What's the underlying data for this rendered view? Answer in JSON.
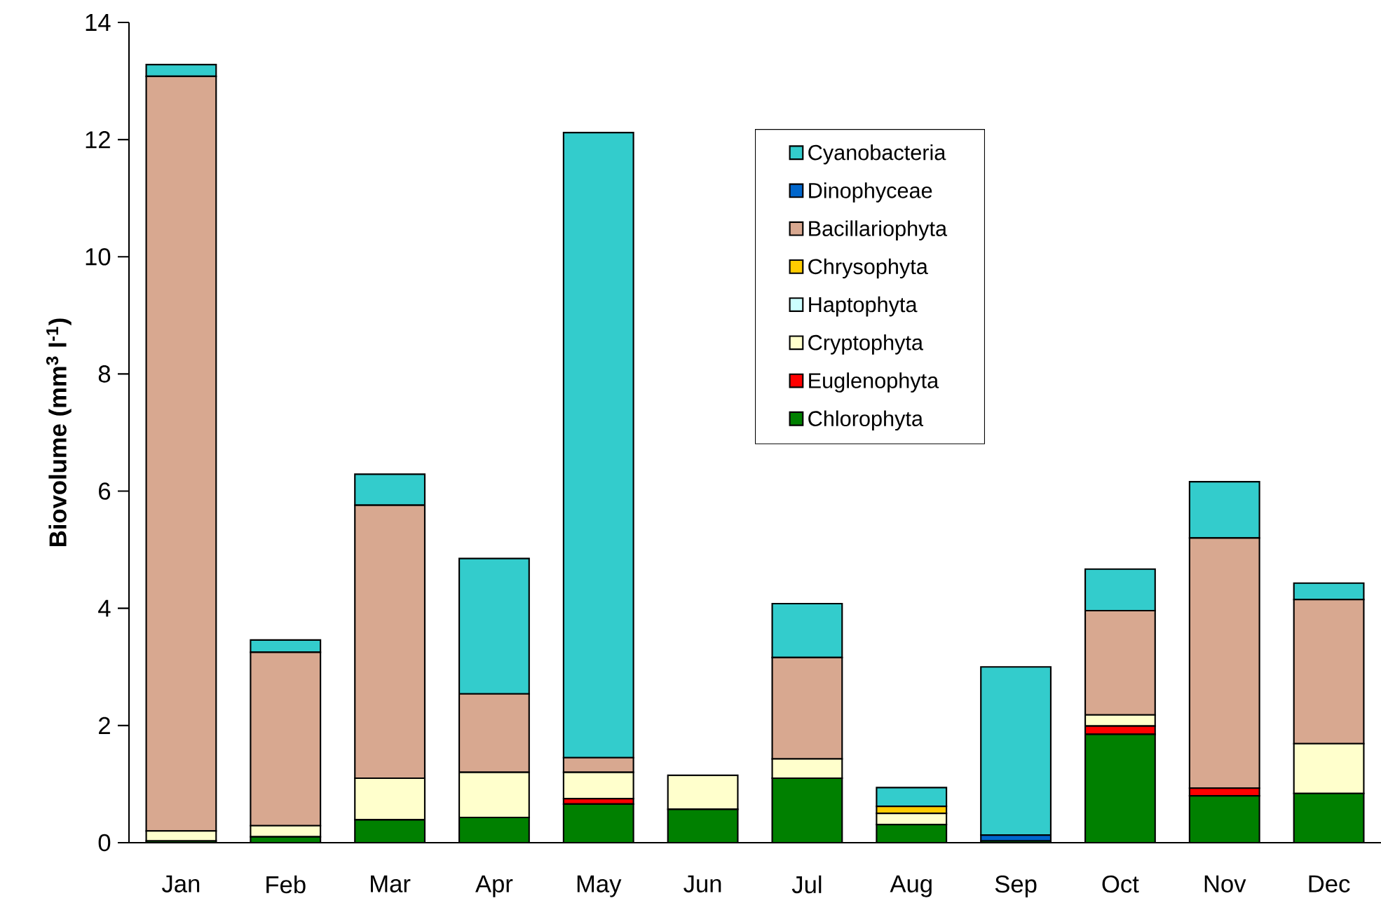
{
  "chart_data": {
    "type": "bar",
    "stacked": true,
    "ylabel": "**Biovolume (mm$^{3}$ l$^{-1}$)**",
    "categories": [
      "Jan",
      "Feb",
      "Mar",
      "Apr",
      "May",
      "Jun",
      "Jul",
      "Aug",
      "Sep",
      "Oct",
      "Nov",
      "Dec"
    ],
    "series": [
      {
        "name": "Chlorophyta",
        "color": "#008000",
        "values": [
          0.03,
          0.1,
          0.39,
          0.43,
          0.66,
          0.57,
          1.1,
          0.31,
          0.03,
          1.85,
          0.8,
          0.84
        ]
      },
      {
        "name": "Euglenophyta",
        "color": "#ff0000",
        "values": [
          0,
          0,
          0,
          0,
          0.09,
          0,
          0,
          0,
          0,
          0.14,
          0.13,
          0
        ]
      },
      {
        "name": "Cryptophyta",
        "color": "#ffffcc",
        "values": [
          0.17,
          0.19,
          0.71,
          0.77,
          0.45,
          0.58,
          0.33,
          0.19,
          0,
          0.19,
          0,
          0.85
        ]
      },
      {
        "name": "Haptophyta",
        "color": "#ccffff",
        "values": [
          0,
          0,
          0,
          0,
          0,
          0,
          0,
          0,
          0,
          0,
          0,
          0
        ]
      },
      {
        "name": "Chrysophyta",
        "color": "#ffcc00",
        "values": [
          0,
          0,
          0,
          0,
          0,
          0,
          0,
          0.12,
          0,
          0,
          0,
          0
        ]
      },
      {
        "name": "Bacillariophyta",
        "color": "#d8a890",
        "values": [
          12.88,
          2.96,
          4.66,
          1.34,
          0.25,
          0,
          1.73,
          0,
          0,
          1.78,
          4.27,
          2.46
        ]
      },
      {
        "name": "Dinophyceae",
        "color": "#0066cc",
        "values": [
          0,
          0,
          0,
          0,
          0,
          0,
          0,
          0,
          0.1,
          0,
          0,
          0
        ]
      },
      {
        "name": "Cyanobacteria",
        "color": "#33cccc",
        "values": [
          0.2,
          0.21,
          0.53,
          2.31,
          10.67,
          0,
          0.92,
          0.32,
          2.87,
          0.71,
          0.96,
          0.28
        ]
      }
    ],
    "ylim": [
      0,
      14
    ],
    "yticks": [
      0,
      2,
      4,
      6,
      8,
      10,
      12,
      14
    ],
    "legend": "top right",
    "grid": false
  }
}
